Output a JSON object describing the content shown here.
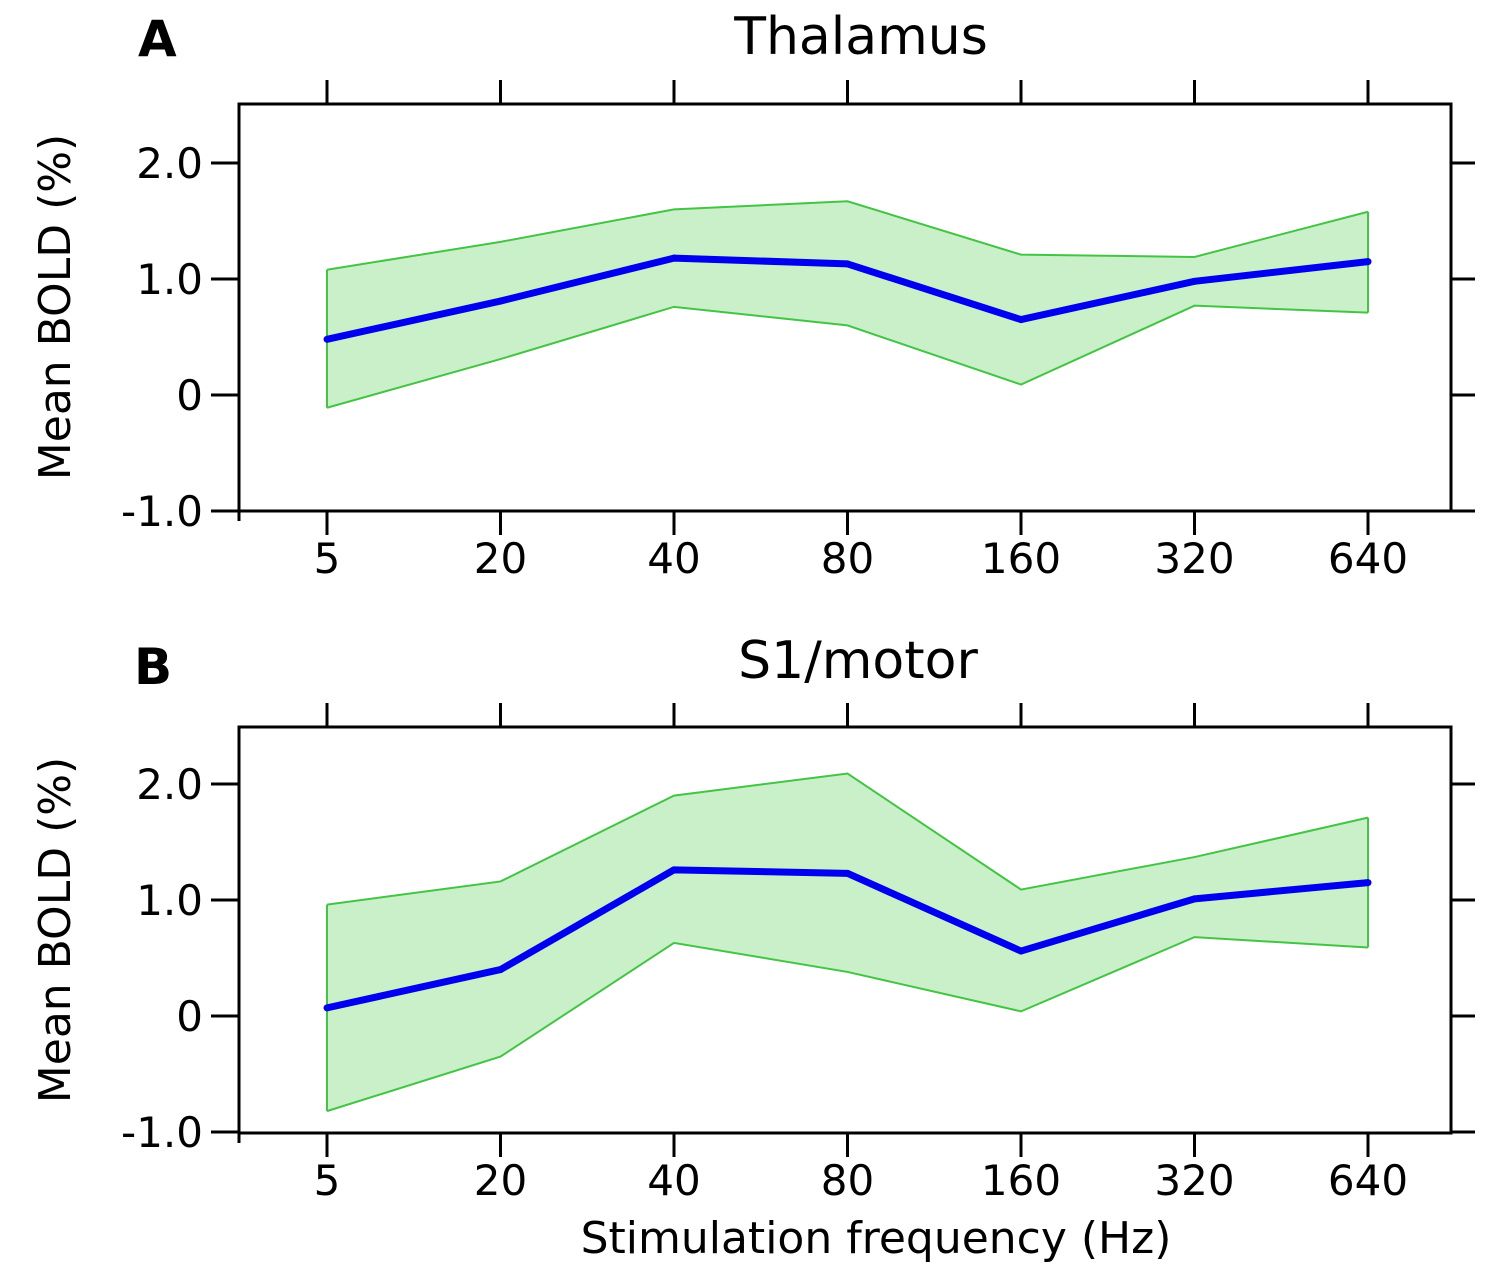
{
  "chart_data": [
    {
      "type": "line",
      "panel_label": "A",
      "title": "Thalamus",
      "xlabel": "",
      "ylabel": "Mean BOLD (%)",
      "categories": [
        "5",
        "20",
        "40",
        "80",
        "160",
        "320",
        "640"
      ],
      "y_ticks": [
        -1.0,
        0,
        1.0,
        2.0
      ],
      "y_tick_labels": [
        "-1.0",
        "0",
        "1.0",
        "2.0"
      ],
      "ylim": [
        -1.0,
        2.5
      ],
      "series": [
        {
          "name": "mean",
          "values": [
            0.48,
            0.81,
            1.18,
            1.13,
            0.65,
            0.98,
            1.15
          ]
        },
        {
          "name": "upper",
          "values": [
            1.08,
            1.32,
            1.6,
            1.67,
            1.21,
            1.19,
            1.58
          ]
        },
        {
          "name": "lower",
          "values": [
            -0.11,
            0.31,
            0.76,
            0.6,
            0.09,
            0.77,
            0.71
          ]
        }
      ],
      "colors": {
        "line": "#0000ee",
        "band_fill": "#c9f0c9",
        "band_edge": "#44c444"
      }
    },
    {
      "type": "line",
      "panel_label": "B",
      "title": "S1/motor",
      "xlabel": "Stimulation frequency (Hz)",
      "ylabel": "Mean BOLD (%)",
      "categories": [
        "5",
        "20",
        "40",
        "80",
        "160",
        "320",
        "640"
      ],
      "y_ticks": [
        -1.0,
        0,
        1.0,
        2.0
      ],
      "y_tick_labels": [
        "-1.0",
        "0",
        "1.0",
        "2.0"
      ],
      "ylim": [
        -1.0,
        2.5
      ],
      "series": [
        {
          "name": "mean",
          "values": [
            0.07,
            0.4,
            1.26,
            1.23,
            0.56,
            1.01,
            1.15
          ]
        },
        {
          "name": "upper",
          "values": [
            0.96,
            1.16,
            1.9,
            2.09,
            1.09,
            1.37,
            1.71
          ]
        },
        {
          "name": "lower",
          "values": [
            -0.82,
            -0.35,
            0.63,
            0.38,
            0.04,
            0.68,
            0.59
          ]
        }
      ],
      "colors": {
        "line": "#0000ee",
        "band_fill": "#c9f0c9",
        "band_edge": "#44c444"
      }
    }
  ]
}
